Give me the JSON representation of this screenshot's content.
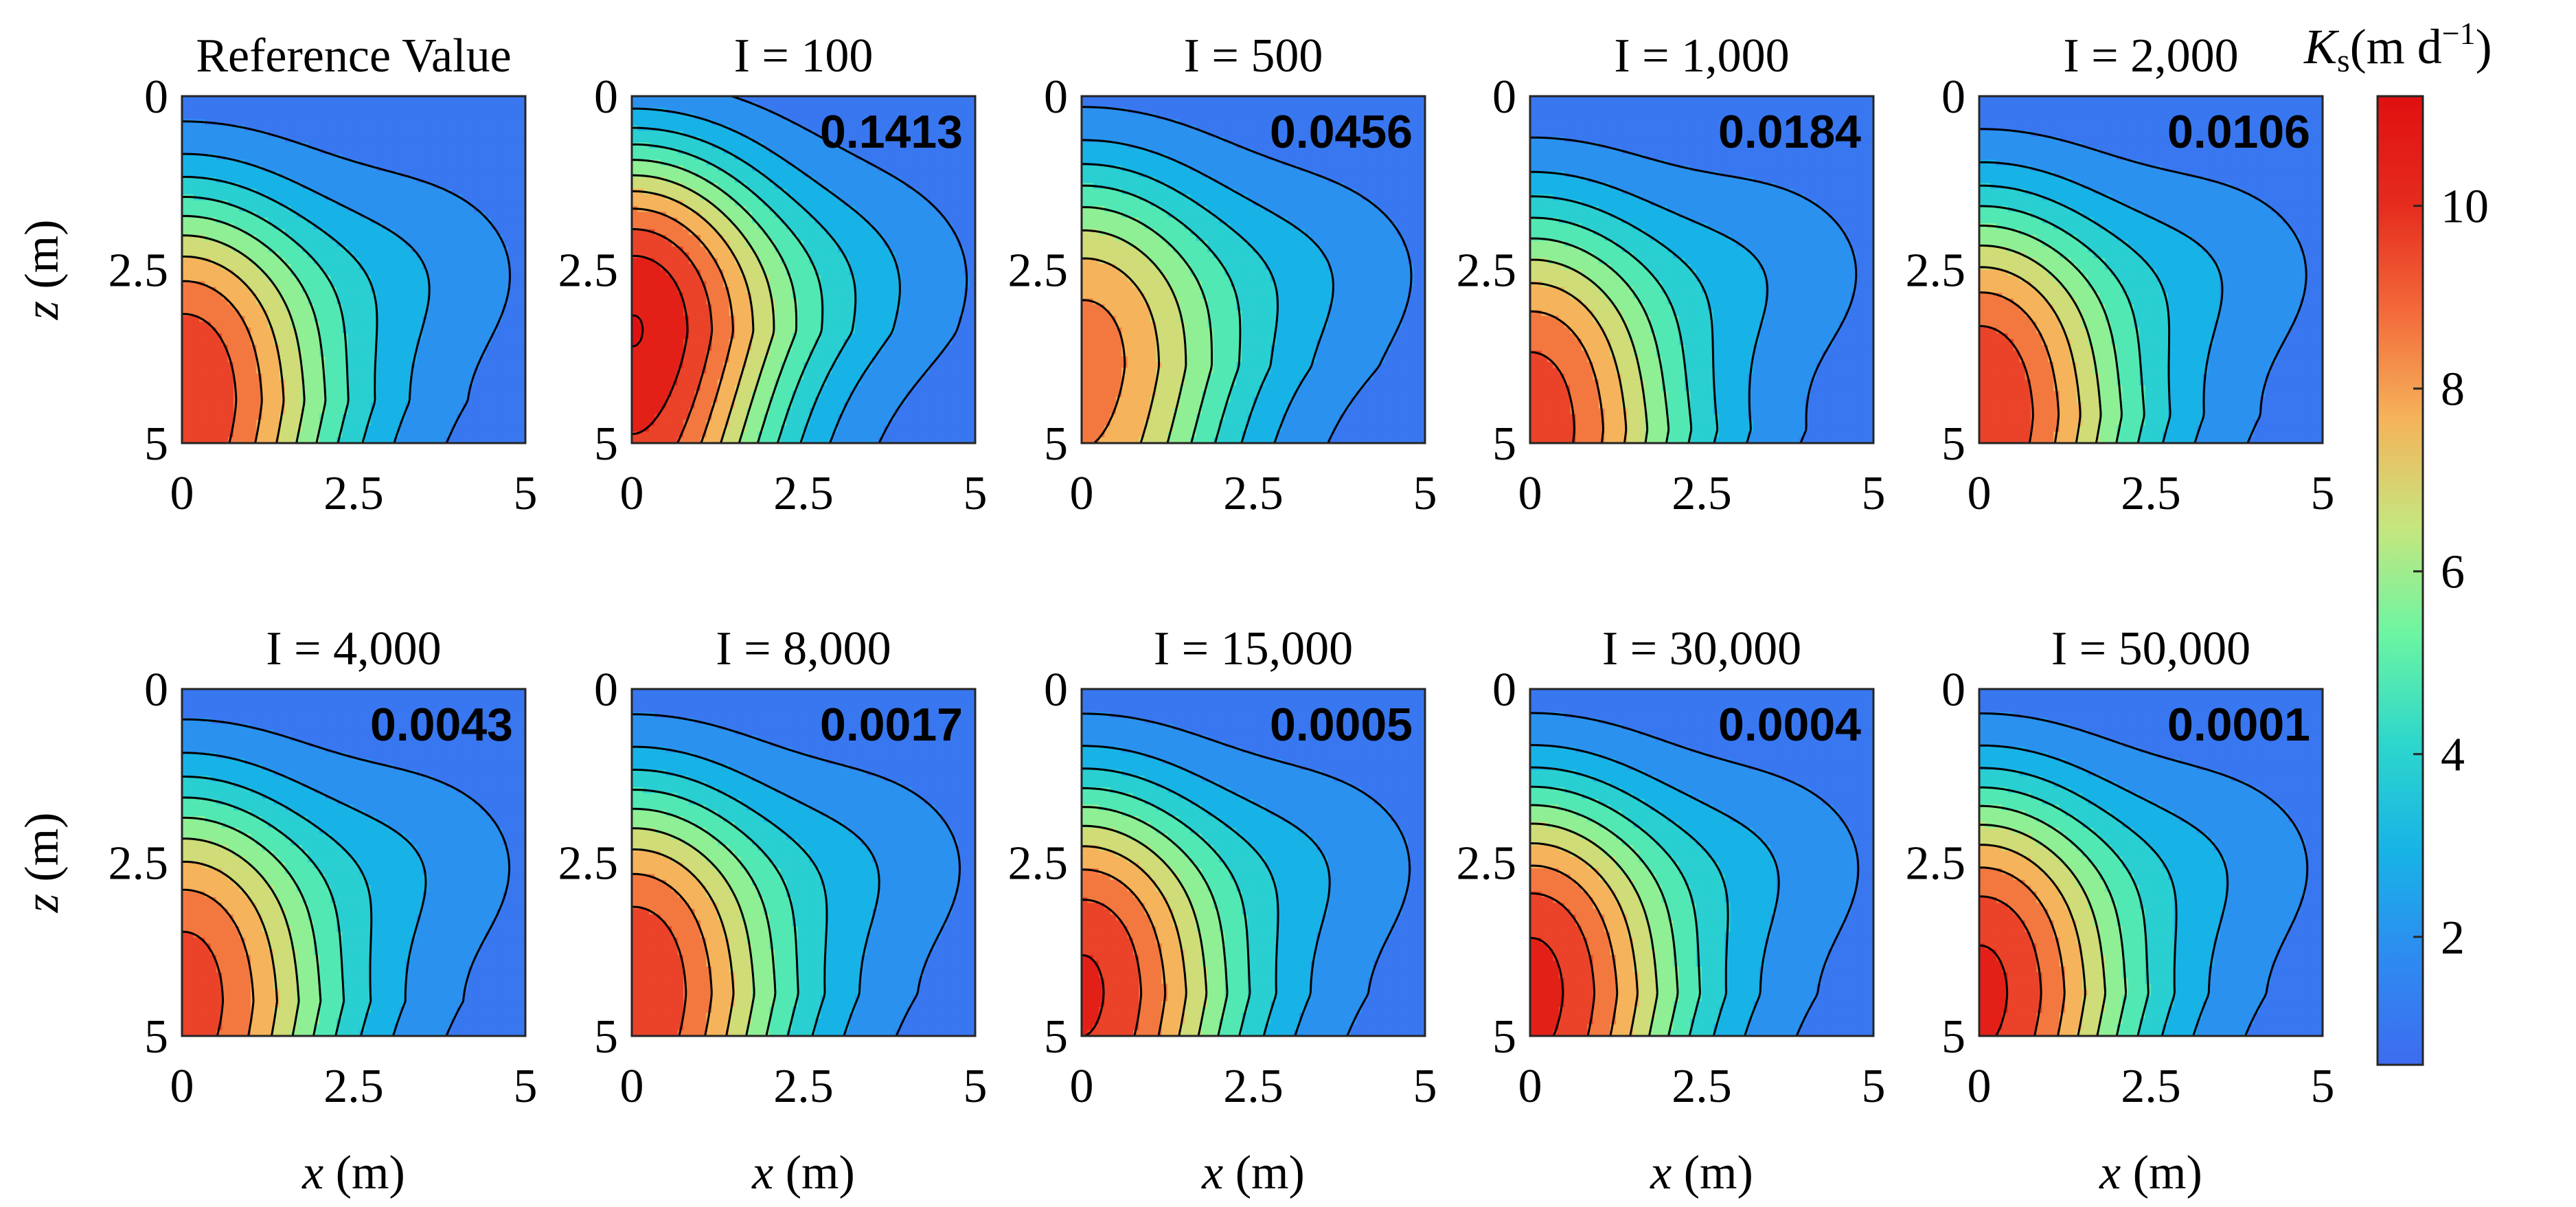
{
  "chart_data": {
    "type": "heatmap",
    "description_of_rows": "two rows of five contour subplots",
    "x_ticks": [
      "0",
      "2.5",
      "5"
    ],
    "z_ticks": [
      "0",
      "2.5",
      "5"
    ],
    "xlabel_var": "x",
    "xlabel_unit": "(m)",
    "zlabel_var": "z",
    "zlabel_unit": "(m)",
    "xlim": [
      0,
      5
    ],
    "zlim": [
      0,
      5
    ],
    "colorbar": {
      "label_symbol": "K",
      "label_sub": "s",
      "label_unit": "(m d",
      "label_exp": "−1",
      "label_close": ")",
      "range": [
        0.6,
        11.2
      ],
      "ticks": [
        "2",
        "4",
        "6",
        "8",
        "10"
      ],
      "tick_values": [
        2,
        4,
        6,
        8,
        10
      ],
      "colormap": [
        "#3d6cf0",
        "#2e8bf0",
        "#17b4e6",
        "#2ed7cb",
        "#6cf5a2",
        "#c6e67e",
        "#f5b35b",
        "#f36a3a",
        "#e52b1e",
        "#e01010"
      ]
    },
    "panels": [
      {
        "title": "Reference Value",
        "value": "",
        "peak": 10.0,
        "peak_z": 4.4
      },
      {
        "title": "I = 100",
        "value": "0.1413",
        "peak": 11.0,
        "peak_z": 3.4
      },
      {
        "title": "I = 500",
        "value": "0.0456",
        "peak": 8.6,
        "peak_z": 3.9
      },
      {
        "title": "I = 1,000",
        "value": "0.0184",
        "peak": 9.7,
        "peak_z": 4.8
      },
      {
        "title": "I = 2,000",
        "value": "0.0106",
        "peak": 10.0,
        "peak_z": 4.6
      },
      {
        "title": "I = 4,000",
        "value": "0.0043",
        "peak": 9.6,
        "peak_z": 4.5
      },
      {
        "title": "I = 8,000",
        "value": "0.0017",
        "peak": 10.0,
        "peak_z": 4.4
      },
      {
        "title": "I = 15,000",
        "value": "0.0005",
        "peak": 10.2,
        "peak_z": 4.4
      },
      {
        "title": "I = 30,000",
        "value": "0.0004",
        "peak": 10.4,
        "peak_z": 4.4
      },
      {
        "title": "I = 50,000",
        "value": "0.0001",
        "peak": 10.3,
        "peak_z": 4.4
      }
    ]
  }
}
